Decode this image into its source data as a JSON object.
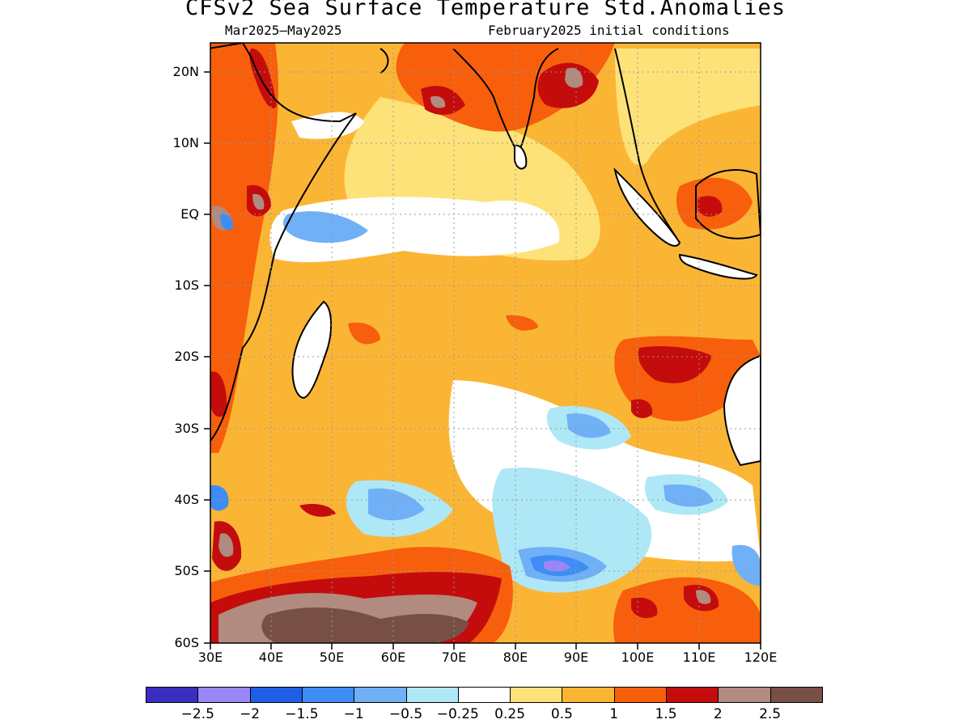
{
  "title": "CFSv2 Sea Surface Temperature Std.Anomalies",
  "subtitle_left": "Mar2025–May2025",
  "subtitle_right": "February2025 initial conditions",
  "lat_labels": [
    "20N",
    "10N",
    "EQ",
    "10S",
    "20S",
    "30S",
    "40S",
    "50S",
    "60S"
  ],
  "lon_labels": [
    "30E",
    "40E",
    "50E",
    "60E",
    "70E",
    "80E",
    "90E",
    "100E",
    "110E",
    "120E"
  ],
  "colorbar": {
    "colors": [
      "#3a2ec0",
      "#9a86f5",
      "#1f5fe6",
      "#3d8df5",
      "#6fb0f7",
      "#aee8f7",
      "#ffffff",
      "#fde27a",
      "#fbb535",
      "#f75f0c",
      "#c40c0c",
      "#b18a80",
      "#774f44"
    ],
    "labels": [
      "−2.5",
      "−2",
      "−1.5",
      "−1",
      "−0.5",
      "−0.25",
      "0.25",
      "0.5",
      "1",
      "1.5",
      "2",
      "2.5"
    ]
  }
}
